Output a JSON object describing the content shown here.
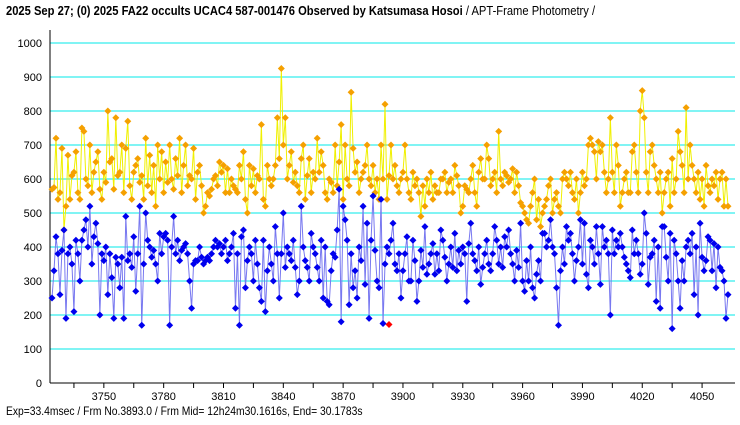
{
  "header": {
    "title_bold": "2025 Sep 27; (0) 2025 FA22 occults UCAC4 587-001476 Observed by Katsumasa Hosoi",
    "title_rest": " / APT-Frame Photometry /"
  },
  "footer": {
    "info": "Exp=33.4msec / Frm No.3893.0 / Frm Mid= 12h24m30.1616s,  End= 30.1783s"
  },
  "chart_data": {
    "type": "line",
    "title": "2025 Sep 27; (0) 2025 FA22 occults UCAC4 587-001476 Observed by Katsumasa Hosoi / APT-Frame Photometry /",
    "xlabel": "",
    "ylabel": "",
    "xlim": [
      3724,
      4063
    ],
    "ylim": [
      0,
      1000
    ],
    "x_start": 3724,
    "x_ticks": [
      3750,
      3780,
      3810,
      3840,
      3870,
      3900,
      3930,
      3960,
      3990,
      4020,
      4050
    ],
    "y_ticks": [
      0,
      100,
      200,
      300,
      400,
      500,
      600,
      700,
      800,
      900,
      1000
    ],
    "grid": true,
    "grid_color": "#00e8e8",
    "series": [
      {
        "color": "#f5a000",
        "line_color": "#f0f000",
        "values": [
          570,
          575,
          720,
          540,
          560,
          690,
          450,
          520,
          670,
          540,
          610,
          620,
          680,
          560,
          540,
          750,
          740,
          600,
          580,
          700,
          560,
          620,
          650,
          680,
          570,
          540,
          620,
          590,
          800,
          650,
          660,
          570,
          780,
          610,
          620,
          700,
          560,
          690,
          770,
          580,
          540,
          620,
          640,
          660,
          590,
          610,
          540,
          720,
          580,
          670,
          560,
          640,
          520,
          700,
          600,
          680,
          560,
          650,
          590,
          700,
          600,
          570,
          660,
          610,
          720,
          560,
          640,
          700,
          580,
          610,
          600,
          690,
          540,
          620,
          640,
          580,
          500,
          520,
          560,
          550,
          570,
          600,
          610,
          580,
          650,
          620,
          640,
          560,
          630,
          560,
          600,
          580,
          570,
          560,
          640,
          600,
          680,
          540,
          500,
          640,
          580,
          630,
          560,
          610,
          600,
          760,
          540,
          520,
          640,
          600,
          580,
          600,
          640,
          780,
          660,
          925,
          700,
          780,
          600,
          640,
          680,
          590,
          620,
          580,
          560,
          660,
          700,
          540,
          610,
          660,
          560,
          620,
          600,
          720,
          620,
          680,
          640,
          560,
          540,
          600,
          590,
          560,
          700,
          580,
          650,
          760,
          540,
          700,
          600,
          580,
          855,
          690,
          620,
          650,
          560,
          600,
          620,
          640,
          700,
          600,
          580,
          640,
          560,
          600,
          540,
          700,
          600,
          820,
          540,
          610,
          700,
          600,
          640,
          580,
          560,
          600,
          620,
          700,
          600,
          560,
          540,
          620,
          580,
          600,
          560,
          490,
          580,
          520,
          600,
          560,
          620,
          540,
          580,
          560,
          560,
          600,
          600,
          620,
          560,
          590,
          600,
          560,
          640,
          610,
          580,
          500,
          520,
          580,
          570,
          560,
          600,
          640,
          560,
          520,
          620,
          660,
          600,
          600,
          700,
          660,
          580,
          600,
          620,
          560,
          740,
          600,
          580,
          620,
          610,
          590,
          600,
          630,
          560,
          620,
          580,
          530,
          520,
          500,
          480,
          470,
          520,
          560,
          600,
          480,
          540,
          460,
          500,
          520,
          540,
          580,
          600,
          500,
          540,
          560,
          520,
          500,
          600,
          620,
          600,
          580,
          620,
          560,
          540,
          600,
          500,
          560,
          620,
          580,
          600,
          700,
          720,
          700,
          680,
          600,
          710,
          680,
          700,
          620,
          560,
          600,
          780,
          620,
          560,
          700,
          640,
          520,
          560,
          600,
          620,
          560,
          560,
          680,
          700,
          620,
          560,
          800,
          860,
          780,
          620,
          560,
          680,
          700,
          640,
          600,
          560,
          620,
          500,
          560,
          600,
          620,
          520,
          660,
          560,
          600,
          740,
          680,
          640,
          560,
          810,
          600,
          700,
          640,
          600,
          560,
          620,
          540,
          600,
          520,
          640,
          580,
          560,
          600,
          580,
          620,
          540,
          600,
          620,
          520,
          600,
          520
        ]
      },
      {
        "color": "#0000ee",
        "line_color": "#7878f0",
        "values": [
          250,
          330,
          430,
          380,
          260,
          390,
          450,
          190,
          380,
          400,
          350,
          210,
          420,
          380,
          300,
          420,
          450,
          480,
          400,
          520,
          350,
          430,
          470,
          410,
          200,
          380,
          360,
          400,
          260,
          380,
          310,
          190,
          370,
          350,
          280,
          370,
          190,
          490,
          360,
          380,
          340,
          430,
          270,
          380,
          520,
          170,
          350,
          500,
          420,
          400,
          370,
          390,
          350,
          300,
          440,
          380,
          430,
          440,
          420,
          170,
          400,
          490,
          380,
          420,
          360,
          390,
          400,
          410,
          380,
          300,
          220,
          350,
          360,
          360,
          400,
          370,
          350,
          360,
          370,
          360,
          380,
          400,
          420,
          400,
          410,
          380,
          400,
          420,
          360,
          380,
          400,
          440,
          220,
          380,
          170,
          430,
          450,
          280,
          360,
          400,
          380,
          300,
          420,
          350,
          280,
          240,
          420,
          210,
          330,
          400,
          350,
          300,
          460,
          380,
          250,
          380,
          500,
          340,
          400,
          380,
          360,
          420,
          340,
          260,
          300,
          520,
          400,
          360,
          340,
          300,
          440,
          400,
          380,
          340,
          300,
          420,
          250,
          400,
          240,
          230,
          330,
          380,
          370,
          450,
          570,
          180,
          520,
          480,
          420,
          230,
          380,
          280,
          330,
          250,
          400,
          360,
          520,
          290,
          470,
          190,
          420,
          550,
          390,
          300,
          280,
          540,
          175,
          350,
          400,
          380,
          420,
          470,
          350,
          330,
          380,
          250,
          330,
          380,
          430,
          300,
          300,
          420,
          360,
          240,
          300,
          390,
          340,
          460,
          320,
          350,
          380,
          410,
          320,
          380,
          330,
          450,
          420,
          370,
          300,
          350,
          400,
          340,
          440,
          330,
          390,
          350,
          400,
          380,
          240,
          410,
          470,
          380,
          360,
          330,
          400,
          290,
          340,
          380,
          420,
          350,
          330,
          380,
          460,
          420,
          350,
          400,
          340,
          430,
          400,
          450,
          380,
          350,
          300,
          390,
          340,
          470,
          300,
          270,
          360,
          300,
          400,
          280,
          250,
          320,
          360,
          300,
          440,
          440,
          400,
          420,
          480,
          400,
          380,
          280,
          170,
          330,
          400,
          350,
          460,
          420,
          440,
          380,
          300,
          360,
          400,
          480,
          350,
          470,
          320,
          280,
          420,
          400,
          350,
          460,
          380,
          290,
          460,
          400,
          420,
          380,
          200,
          450,
          380,
          420,
          400,
          440,
          400,
          370,
          350,
          330,
          310,
          450,
          380,
          420,
          380,
          320,
          350,
          500,
          440,
          290,
          370,
          380,
          420,
          240,
          400,
          220,
          460,
          460,
          370,
          300,
          440,
          160,
          420,
          380,
          300,
          220,
          360,
          300,
          400,
          420,
          380,
          440,
          260,
          400,
          200,
          470,
          370,
          330,
          360,
          430,
          420,
          330,
          410,
          280,
          400,
          340,
          330,
          300,
          190,
          260
        ]
      }
    ],
    "highlight": {
      "frame": 3893,
      "value": 172,
      "color": "#ff0000"
    }
  }
}
